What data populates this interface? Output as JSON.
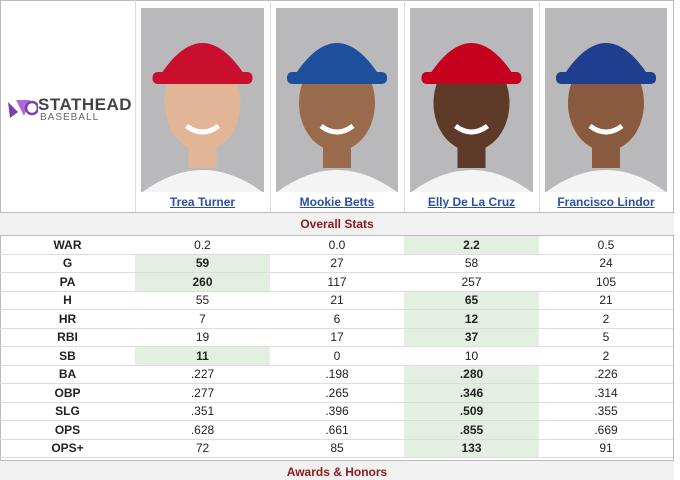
{
  "logo": {
    "name": "STATHEAD",
    "sub": "BASEBALL"
  },
  "players": [
    "Trea Turner",
    "Mookie Betts",
    "Elly De La Cruz",
    "Francisco Lindor"
  ],
  "sections": {
    "stats_title": "Overall Stats",
    "next_title": "Awards & Honors"
  },
  "table": {
    "rows": [
      {
        "label": "WAR",
        "values": [
          "0.2",
          "0.0",
          "2.2",
          "0.5"
        ],
        "highlight": 2
      },
      {
        "label": "G",
        "values": [
          "59",
          "27",
          "58",
          "24"
        ],
        "highlight": 0
      },
      {
        "label": "PA",
        "values": [
          "260",
          "117",
          "257",
          "105"
        ],
        "highlight": 0
      },
      {
        "label": "H",
        "values": [
          "55",
          "21",
          "65",
          "21"
        ],
        "highlight": 2
      },
      {
        "label": "HR",
        "values": [
          "7",
          "6",
          "12",
          "2"
        ],
        "highlight": 2
      },
      {
        "label": "RBI",
        "values": [
          "19",
          "17",
          "37",
          "5"
        ],
        "highlight": 2
      },
      {
        "label": "SB",
        "values": [
          "11",
          "0",
          "10",
          "2"
        ],
        "highlight": 0
      },
      {
        "label": "BA",
        "values": [
          ".227",
          ".198",
          ".280",
          ".226"
        ],
        "highlight": 2
      },
      {
        "label": "OBP",
        "values": [
          ".277",
          ".265",
          ".346",
          ".314"
        ],
        "highlight": 2
      },
      {
        "label": "SLG",
        "values": [
          ".351",
          ".396",
          ".509",
          ".355"
        ],
        "highlight": 2
      },
      {
        "label": "OPS",
        "values": [
          ".628",
          ".661",
          ".855",
          ".669"
        ],
        "highlight": 2
      },
      {
        "label": "OPS+",
        "values": [
          "72",
          "85",
          "133",
          "91"
        ],
        "highlight": 2
      }
    ]
  }
}
